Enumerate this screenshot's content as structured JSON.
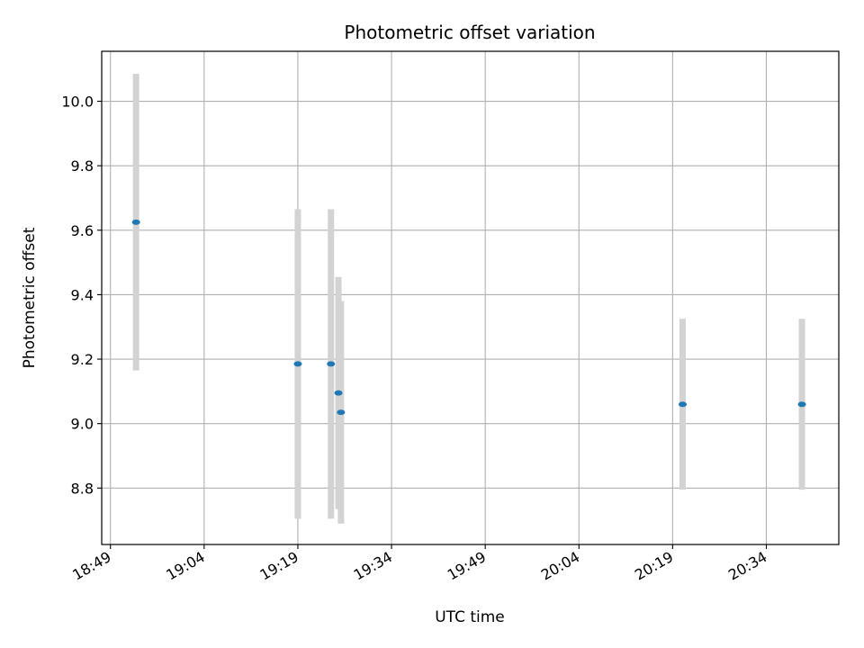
{
  "chart_data": {
    "type": "scatter",
    "title": "Photometric offset variation",
    "xlabel": "UTC time",
    "ylabel": "Photometric offset",
    "x_ticks": [
      "18:49",
      "19:04",
      "19:19",
      "19:34",
      "19:49",
      "20:04",
      "20:19",
      "20:34"
    ],
    "x_tick_minutes": [
      0,
      15,
      30,
      45,
      60,
      75,
      90,
      105
    ],
    "y_ticks": [
      "8.8",
      "9.0",
      "9.2",
      "9.4",
      "9.6",
      "9.8",
      "10.0"
    ],
    "xlim_minutes": [
      -1.4,
      116.6
    ],
    "ylim": [
      8.625,
      10.155
    ],
    "grid": true,
    "marker_color": "#1f77b4",
    "errorbar_color": "#d3d3d3",
    "points": [
      {
        "time": "18:53",
        "t": 4.1,
        "y": 9.625,
        "err": 0.46
      },
      {
        "time": "19:19",
        "t": 30.0,
        "y": 9.185,
        "err": 0.48
      },
      {
        "time": "19:24",
        "t": 35.3,
        "y": 9.185,
        "err": 0.48
      },
      {
        "time": "19:25",
        "t": 36.5,
        "y": 9.095,
        "err": 0.36
      },
      {
        "time": "19:26",
        "t": 36.9,
        "y": 9.035,
        "err": 0.345
      },
      {
        "time": "20:21",
        "t": 91.6,
        "y": 9.06,
        "err": 0.265
      },
      {
        "time": "20:40",
        "t": 110.7,
        "y": 9.06,
        "err": 0.265
      }
    ]
  }
}
